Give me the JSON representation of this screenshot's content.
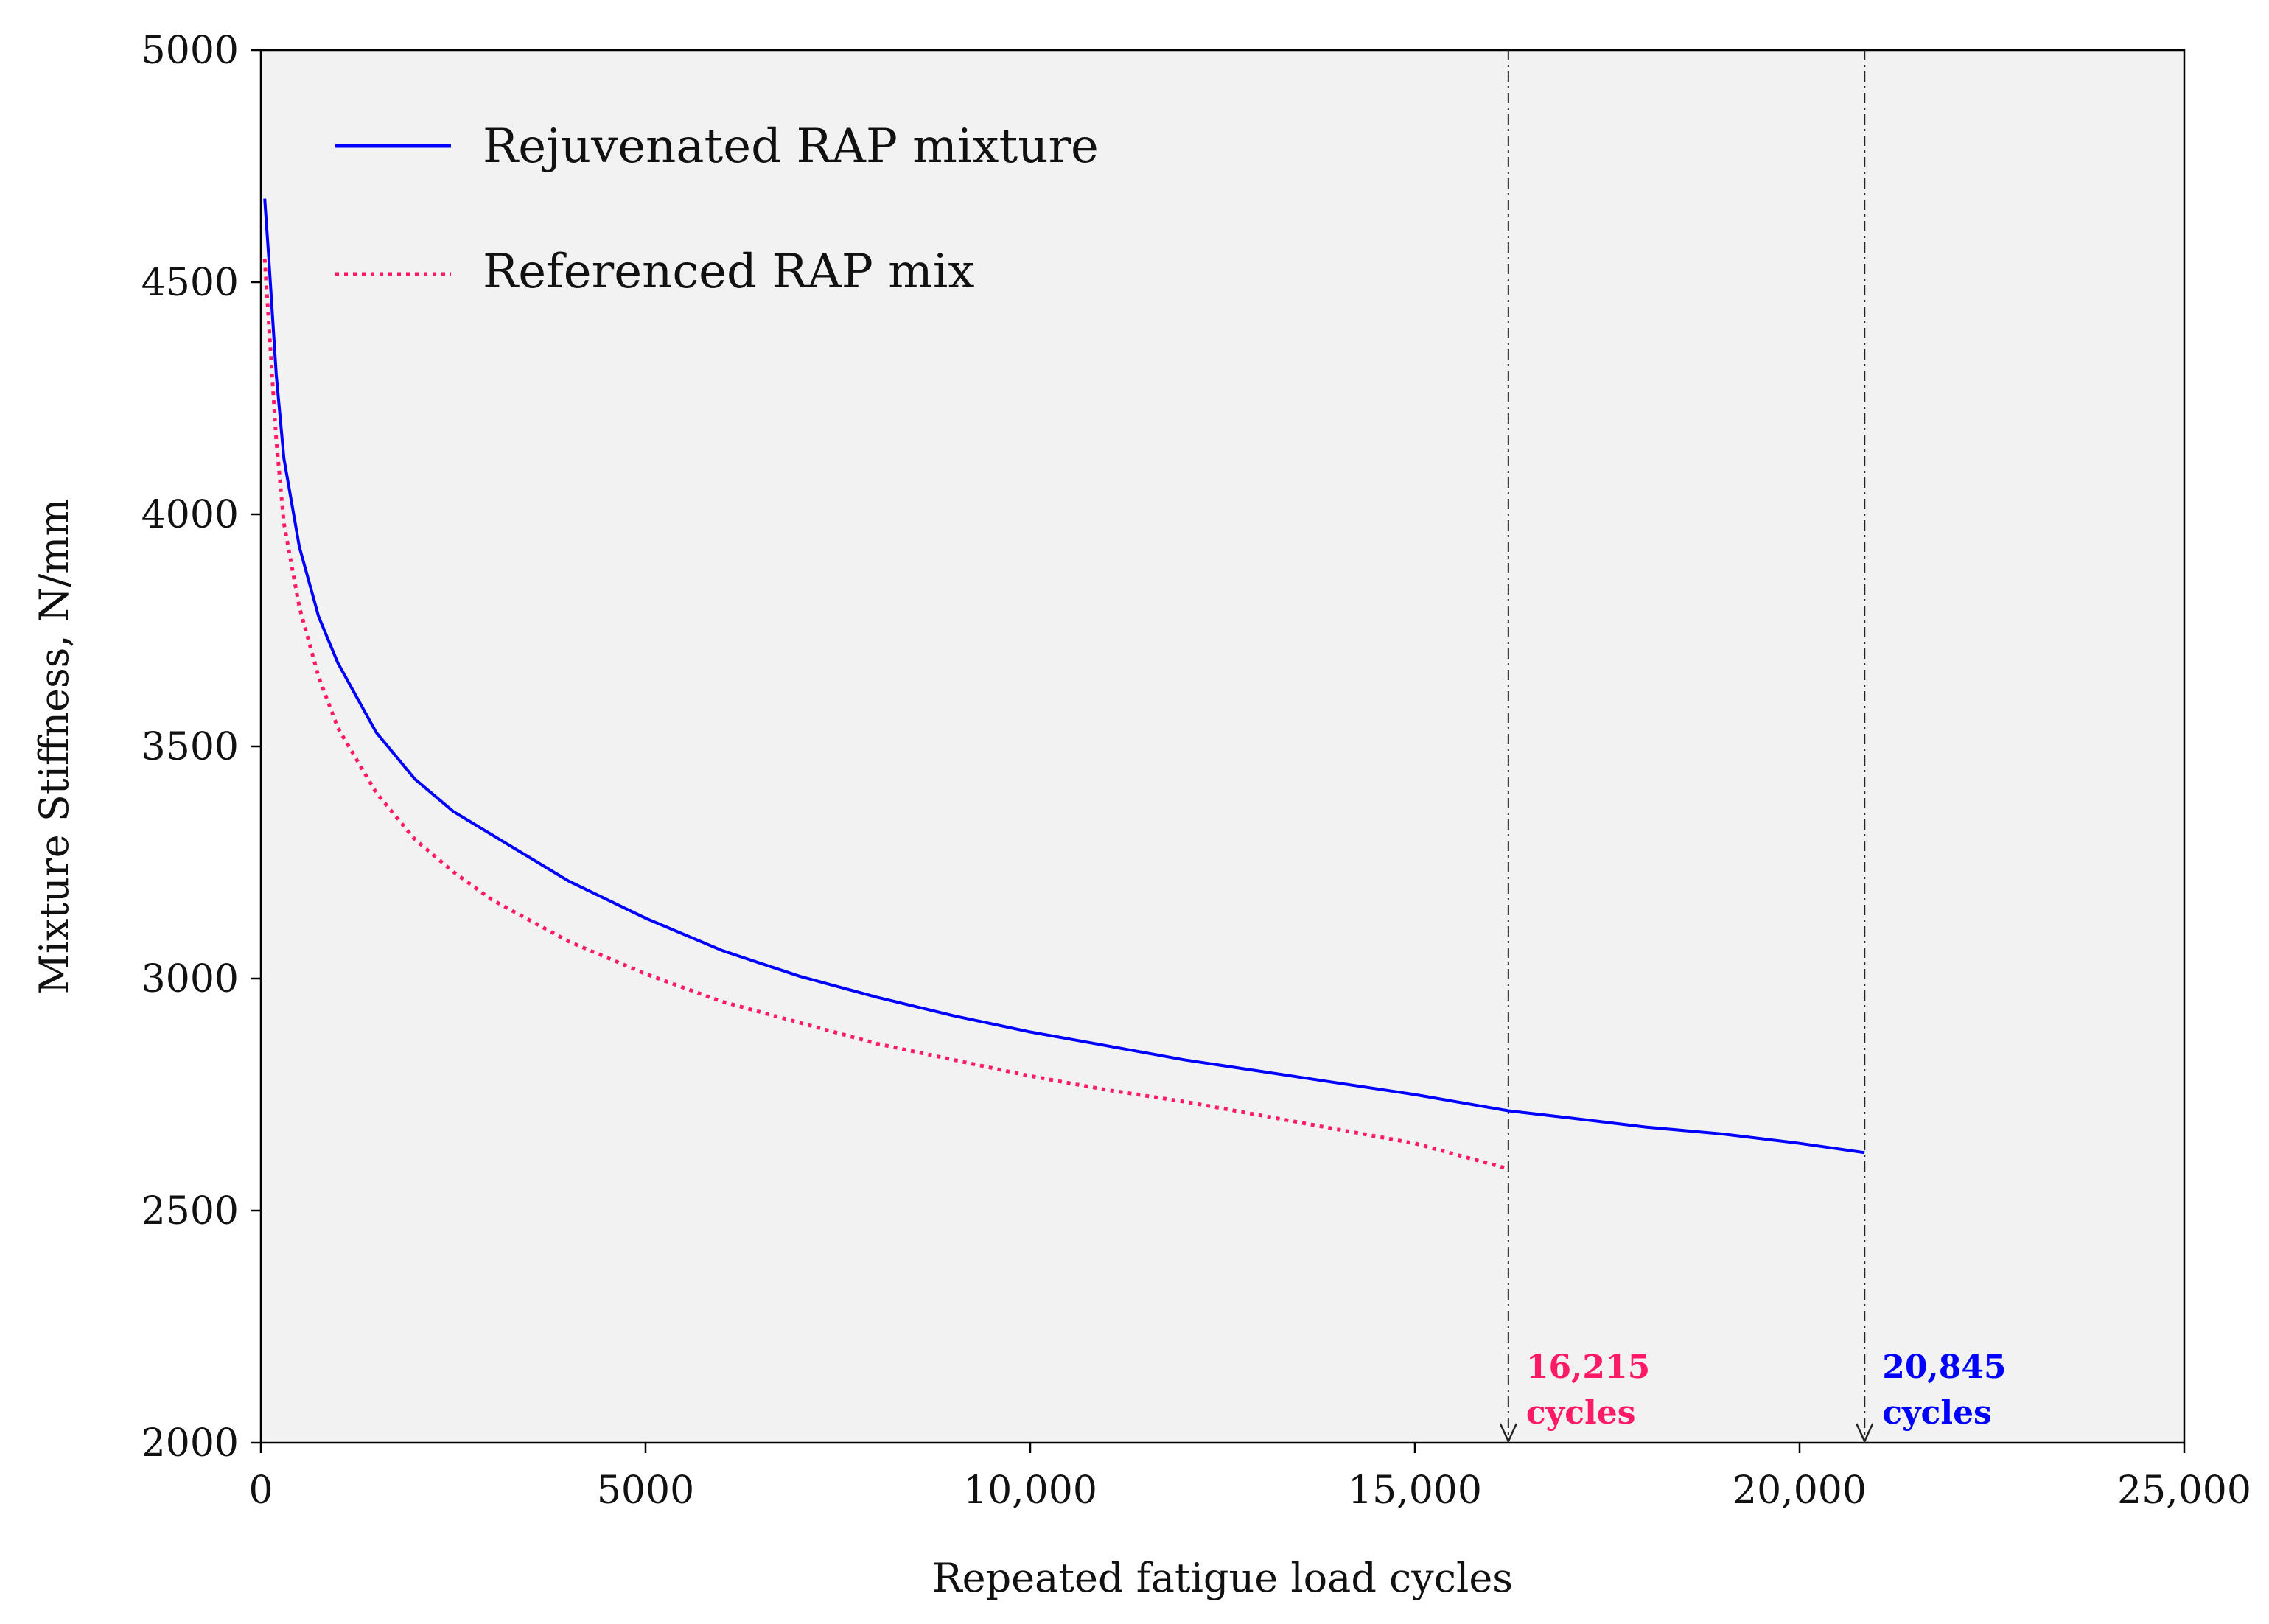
{
  "chart_data": {
    "type": "line",
    "title": "",
    "xlabel": "Repeated fatigue load cycles",
    "ylabel": "Mixture Stiffness, N/mm",
    "xlim": [
      0,
      25000
    ],
    "ylim": [
      2000,
      5000
    ],
    "x_ticks": [
      0,
      5000,
      10000,
      15000,
      20000,
      25000
    ],
    "x_tick_labels": [
      "0",
      "5000",
      "10,000",
      "15,000",
      "20,000",
      "25,000"
    ],
    "y_ticks": [
      2000,
      2500,
      3000,
      3500,
      4000,
      4500,
      5000
    ],
    "y_tick_labels": [
      "2000",
      "2500",
      "3000",
      "3500",
      "4000",
      "4500",
      "5000"
    ],
    "grid": false,
    "background": "#f2f2f2",
    "legend_position": "top-left",
    "series": [
      {
        "name": "Rejuvenated RAP mixture",
        "color": "#0000ff",
        "style": "solid",
        "x": [
          50,
          100,
          200,
          300,
          500,
          750,
          1000,
          1500,
          2000,
          2500,
          3000,
          4000,
          5000,
          6000,
          7000,
          8000,
          9000,
          10000,
          11000,
          12000,
          13000,
          14000,
          15000,
          16215,
          17000,
          18000,
          19000,
          20000,
          20845
        ],
        "y": [
          4680,
          4560,
          4300,
          4120,
          3930,
          3780,
          3680,
          3530,
          3430,
          3360,
          3310,
          3210,
          3130,
          3060,
          3005,
          2960,
          2920,
          2885,
          2855,
          2825,
          2800,
          2775,
          2750,
          2715,
          2700,
          2680,
          2665,
          2645,
          2625
        ]
      },
      {
        "name": "Referenced RAP mix",
        "color": "#ff1a66",
        "style": "dotted",
        "x": [
          50,
          100,
          200,
          300,
          500,
          750,
          1000,
          1500,
          2000,
          2500,
          3000,
          4000,
          5000,
          6000,
          7000,
          8000,
          9000,
          10000,
          11000,
          12000,
          13000,
          14000,
          15000,
          16215
        ],
        "y": [
          4550,
          4420,
          4160,
          3980,
          3800,
          3650,
          3540,
          3400,
          3300,
          3230,
          3170,
          3080,
          3010,
          2950,
          2905,
          2860,
          2825,
          2790,
          2760,
          2735,
          2705,
          2675,
          2645,
          2590
        ]
      }
    ],
    "reference_lines": [
      {
        "x": 16215,
        "label_line1": "16,215",
        "label_line2": "cycles",
        "color": "#ff1a66"
      },
      {
        "x": 20845,
        "label_line1": "20,845",
        "label_line2": "cycles",
        "color": "#0000ff"
      }
    ]
  }
}
